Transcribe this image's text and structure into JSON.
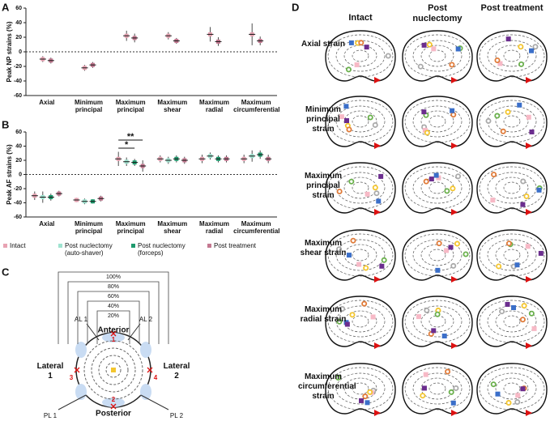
{
  "panel_labels": [
    "A",
    "B",
    "C",
    "D"
  ],
  "chart_data": [
    {
      "type": "dot",
      "ylabel": "Peak NP strains (%)",
      "categories": [
        "Axial",
        "Minimum principal",
        "Maximum principal",
        "Maximum shear",
        "Maximum radial",
        "Maximum circumferential"
      ],
      "ylim": [
        -60,
        60
      ],
      "yticks": [
        -60,
        -40,
        -20,
        0,
        20,
        40,
        60
      ],
      "series": [
        {
          "color": "#e8a3b3",
          "values": [
            -10,
            -22,
            22,
            22,
            24,
            24
          ],
          "errors": [
            4,
            4,
            7,
            5,
            10,
            15
          ]
        },
        {
          "color": "#c47891",
          "values": [
            -12,
            -18,
            19,
            15,
            14,
            15
          ],
          "errors": [
            4,
            4,
            6,
            4,
            6,
            6
          ]
        }
      ]
    },
    {
      "type": "dot",
      "ylabel": "Peak AF strains (%)",
      "categories": [
        "Axial",
        "Minimum principal",
        "Maximum principal",
        "Maximum shear",
        "Maximum radial",
        "Maximum circumferential"
      ],
      "ylim": [
        -60,
        60
      ],
      "yticks": [
        -60,
        -40,
        -20,
        0,
        20,
        40,
        60
      ],
      "annotations": [
        "**",
        "*"
      ],
      "series": [
        {
          "name": "Intact",
          "color": "#e8a3b3",
          "values": [
            -30,
            -36,
            22,
            22,
            22,
            22
          ],
          "errors": [
            6,
            3,
            10,
            5,
            6,
            6
          ]
        },
        {
          "name": "Post nuclectomy (auto-shaver)",
          "color": "#9fe3d0",
          "values": [
            -32,
            -38,
            18,
            20,
            26,
            26
          ],
          "errors": [
            8,
            4,
            6,
            5,
            5,
            8
          ]
        },
        {
          "name": "Post nuclectomy (forceps)",
          "color": "#1f9a6e",
          "values": [
            -32,
            -38,
            17,
            22,
            22,
            28
          ],
          "errors": [
            5,
            3,
            5,
            5,
            5,
            6
          ]
        },
        {
          "name": "Post treatment",
          "color": "#c47891",
          "values": [
            -27,
            -34,
            12,
            20,
            22,
            22
          ],
          "errors": [
            4,
            4,
            8,
            5,
            5,
            6
          ]
        }
      ]
    }
  ],
  "diagram": {
    "levels": [
      "100%",
      "80%",
      "60%",
      "40%",
      "20%"
    ],
    "anterior": "Anterior",
    "posterior": "Posterior",
    "lateral_1": "Lateral 1",
    "lateral_2": "Lateral 2",
    "al_1": "AL 1",
    "al_2": "AL 2",
    "pl_1": "PL 1",
    "pl_2": "PL 2",
    "points": [
      "1",
      "2",
      "3",
      "4"
    ]
  },
  "maps": {
    "columns": [
      "Intact",
      "Post nuclectomy",
      "Post treatment"
    ],
    "rows": [
      "Axial strain",
      "Minimum principal strain",
      "Maximum principal strain",
      "Maximum shear strain",
      "Maximum radial strain",
      "Maximum circumferential strain"
    ]
  }
}
